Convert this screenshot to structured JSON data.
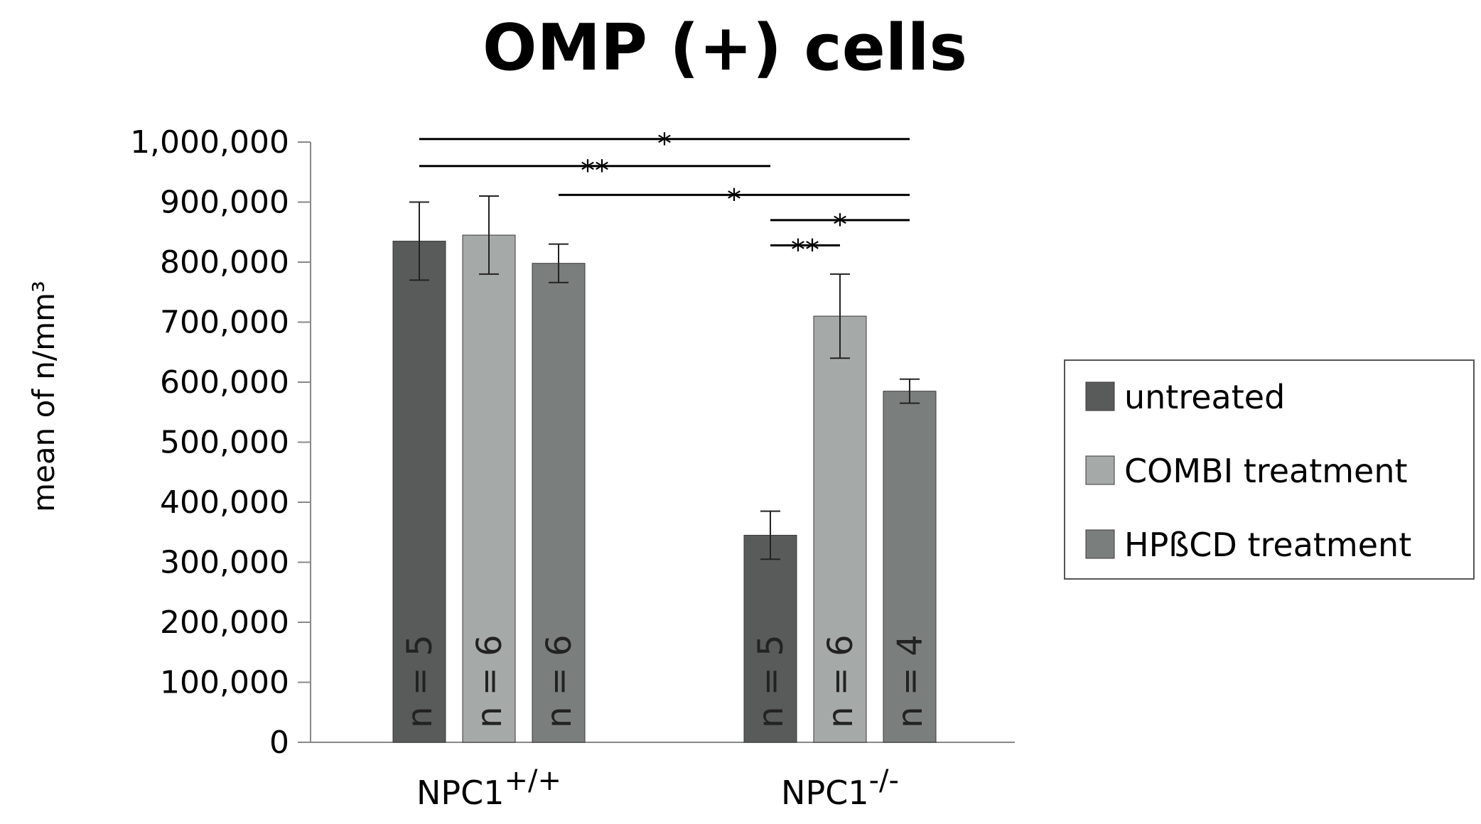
{
  "chart_data": {
    "type": "bar",
    "title": "OMP (+) cells",
    "ylabel": "mean of n/mm³",
    "xlabel": "",
    "ylim": [
      0,
      1000000
    ],
    "yticks": [
      0,
      100000,
      200000,
      300000,
      400000,
      500000,
      600000,
      700000,
      800000,
      900000,
      1000000
    ],
    "ytick_labels": [
      "0",
      "100,000",
      "200,000",
      "300,000",
      "400,000",
      "500,000",
      "600,000",
      "700,000",
      "800,000",
      "900,000",
      "1,000,000"
    ],
    "categories": [
      {
        "base": "NPC1",
        "sup": "+/+"
      },
      {
        "base": "NPC1",
        "sup": "-/-"
      }
    ],
    "series": [
      {
        "name": "untreated",
        "color": "#595b5a",
        "values": [
          835000,
          345000
        ],
        "errors": [
          65000,
          40000
        ],
        "n_labels": [
          "n = 5",
          "n = 5"
        ]
      },
      {
        "name": "COMBI treatment",
        "color": "#a5a9a8",
        "values": [
          845000,
          710000
        ],
        "errors": [
          65000,
          70000
        ],
        "n_labels": [
          "n = 6",
          "n = 6"
        ]
      },
      {
        "name": "HPßCD treatment",
        "color": "#7a7e7d",
        "values": [
          798000,
          585000
        ],
        "errors": [
          32000,
          20000
        ],
        "n_labels": [
          "n = 6",
          "n = 4"
        ]
      }
    ],
    "legend": {
      "position": "right",
      "border": true
    },
    "grid": false,
    "significance": [
      {
        "from": [
          0,
          0
        ],
        "to": [
          1,
          2
        ],
        "y": 1005000,
        "label": "*"
      },
      {
        "from": [
          0,
          0
        ],
        "to": [
          1,
          0
        ],
        "y": 960000,
        "label": "**"
      },
      {
        "from": [
          0,
          2
        ],
        "to": [
          1,
          2
        ],
        "y": 912000,
        "label": "*"
      },
      {
        "from": [
          1,
          0
        ],
        "to": [
          1,
          2
        ],
        "y": 870000,
        "label": "*"
      },
      {
        "from": [
          1,
          0
        ],
        "to": [
          1,
          1
        ],
        "y": 828000,
        "label": "**"
      }
    ]
  }
}
